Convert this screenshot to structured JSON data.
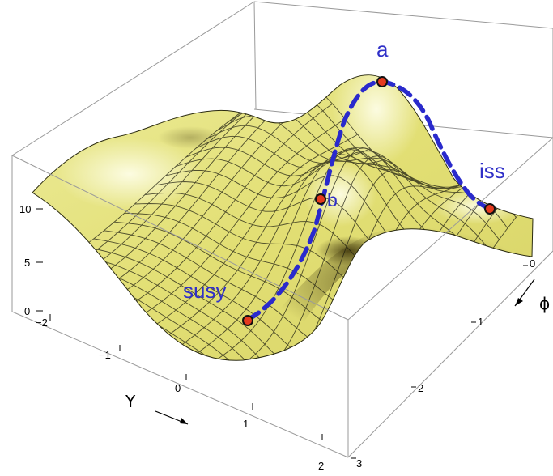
{
  "figure": {
    "surface_colors": {
      "base": "#e6e27a",
      "highlight": "#fbfbd8",
      "shadow": "#4a3f10",
      "mesh": "#1c1c10"
    },
    "path_color": "#2a2acc",
    "point_fill": "#e53a1e"
  },
  "axes": {
    "y_axis_label": "Y",
    "phi_axis_label": "ϕ",
    "vertical_ticks": [
      "0",
      "5",
      "10"
    ],
    "y_ticks": [
      "−2",
      "−1",
      "0",
      "1",
      "2"
    ],
    "phi_ticks": [
      "0",
      "1",
      "2",
      "3"
    ]
  },
  "points": [
    {
      "id": "a",
      "label": "a"
    },
    {
      "id": "b",
      "label": "b"
    },
    {
      "id": "iss",
      "label": "iss"
    },
    {
      "id": "susy",
      "label": "susy"
    }
  ]
}
